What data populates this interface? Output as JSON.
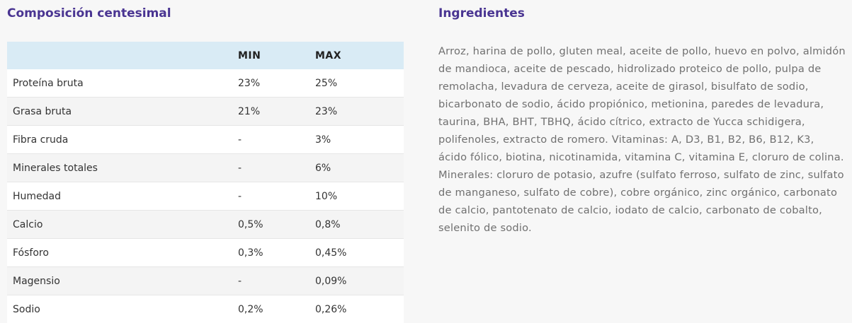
{
  "composition": {
    "title": "Composición centesimal",
    "headers": {
      "name": "",
      "min": "MIN",
      "max": "MAX"
    },
    "rows": [
      {
        "name": "Proteína bruta",
        "min": "23%",
        "max": "25%"
      },
      {
        "name": "Grasa bruta",
        "min": "21%",
        "max": "23%"
      },
      {
        "name": "Fibra cruda",
        "min": "-",
        "max": "3%"
      },
      {
        "name": "Minerales totales",
        "min": "-",
        "max": "6%"
      },
      {
        "name": "Humedad",
        "min": "-",
        "max": "10%"
      },
      {
        "name": "Calcio",
        "min": "0,5%",
        "max": "0,8%"
      },
      {
        "name": "Fósforo",
        "min": "0,3%",
        "max": "0,45%"
      },
      {
        "name": "Magensio",
        "min": "-",
        "max": "0,09%"
      },
      {
        "name": "Sodio",
        "min": "0,2%",
        "max": "0,26%"
      }
    ]
  },
  "ingredients": {
    "title": "Ingredientes",
    "text": "Arroz, harina de pollo, gluten meal, aceite de pollo, huevo en polvo, almidón de mandioca, aceite de pescado, hidrolizado proteico de pollo, pulpa de remolacha, levadura de cerveza, aceite de girasol, bisulfato de sodio, bicarbonato de sodio, ácido propiónico, metionina, paredes de levadura, taurina, BHA, BHT, TBHQ, ácido cítrico, extracto de Yucca schidigera, polifenoles, extracto de romero. Vitaminas: A, D3, B1, B2, B6, B12, K3, ácido fólico, biotina, nicotinamida, vitamina C, vitamina E, cloruro de colina. Minerales: cloruro de potasio, azufre (sulfato ferroso, sulfato de zinc, sulfato de manganeso, sulfato de cobre), cobre orgánico, zinc orgánico, carbonato de calcio, pantotenato de calcio, iodato de calcio, carbonato de cobalto, selenito de sodio."
  }
}
